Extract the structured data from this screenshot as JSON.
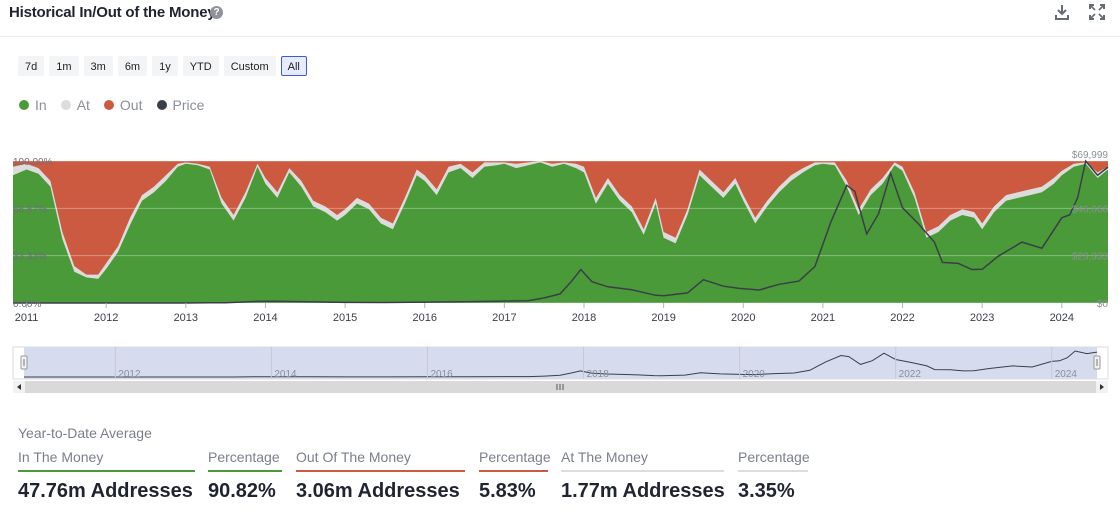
{
  "header": {
    "title": "Historical In/Out of the Money",
    "help_icon": "question-circle-icon",
    "download_icon": "download-icon",
    "fullscreen_icon": "expand-icon"
  },
  "range_buttons": [
    "7d",
    "1m",
    "3m",
    "6m",
    "1y",
    "YTD",
    "Custom",
    "All"
  ],
  "active_range": "All",
  "legend": [
    {
      "label": "In",
      "color": "#4a9a3a"
    },
    {
      "label": "At",
      "color": "#dcdcdc"
    },
    {
      "label": "Out",
      "color": "#cc5a41"
    },
    {
      "label": "Price",
      "color": "#3a3f47"
    }
  ],
  "chart_data": {
    "type": "area",
    "stacked_percent": true,
    "x_range": [
      2010.83,
      2024.58
    ],
    "xticks": [
      "2011",
      "2012",
      "2013",
      "2014",
      "2015",
      "2016",
      "2017",
      "2018",
      "2019",
      "2020",
      "2021",
      "2022",
      "2023",
      "2024"
    ],
    "yticks_left": [
      "0.00%",
      "33.33%",
      "66.67%",
      "100.00%"
    ],
    "yticks_right": [
      "$0",
      "$23,333",
      "$46,666",
      "$69,999"
    ],
    "ylim_percent": [
      0,
      100
    ],
    "ylim_price": [
      0,
      69999
    ],
    "grid": true,
    "series": [
      {
        "name": "In",
        "unit": "percent",
        "x": [
          2010.83,
          2011.0,
          2011.15,
          2011.3,
          2011.45,
          2011.6,
          2011.75,
          2011.9,
          2012.0,
          2012.15,
          2012.3,
          2012.45,
          2012.6,
          2012.75,
          2012.9,
          2013.0,
          2013.15,
          2013.3,
          2013.45,
          2013.6,
          2013.75,
          2013.9,
          2014.0,
          2014.15,
          2014.3,
          2014.45,
          2014.6,
          2014.75,
          2014.9,
          2015.0,
          2015.15,
          2015.3,
          2015.45,
          2015.6,
          2015.75,
          2015.9,
          2016.0,
          2016.15,
          2016.3,
          2016.45,
          2016.6,
          2016.75,
          2016.9,
          2017.0,
          2017.15,
          2017.3,
          2017.45,
          2017.6,
          2017.75,
          2017.9,
          2018.0,
          2018.15,
          2018.3,
          2018.45,
          2018.6,
          2018.75,
          2018.9,
          2019.0,
          2019.15,
          2019.3,
          2019.45,
          2019.6,
          2019.75,
          2019.9,
          2020.0,
          2020.15,
          2020.3,
          2020.45,
          2020.6,
          2020.75,
          2020.9,
          2021.0,
          2021.15,
          2021.3,
          2021.45,
          2021.6,
          2021.75,
          2021.9,
          2022.0,
          2022.15,
          2022.3,
          2022.45,
          2022.6,
          2022.75,
          2022.9,
          2023.0,
          2023.15,
          2023.3,
          2023.45,
          2023.6,
          2023.75,
          2023.9,
          2024.0,
          2024.15,
          2024.3,
          2024.45,
          2024.58
        ],
        "values": [
          90,
          94,
          91,
          82,
          45,
          22,
          18,
          17,
          24,
          36,
          55,
          72,
          78,
          86,
          96,
          98,
          97,
          94,
          70,
          58,
          74,
          96,
          84,
          74,
          92,
          82,
          68,
          64,
          58,
          62,
          70,
          66,
          56,
          52,
          70,
          90,
          86,
          76,
          92,
          95,
          88,
          96,
          97,
          98,
          95,
          97,
          99,
          96,
          98,
          95,
          92,
          70,
          84,
          72,
          64,
          48,
          70,
          46,
          42,
          62,
          90,
          82,
          74,
          84,
          72,
          56,
          68,
          78,
          86,
          92,
          97,
          98,
          97,
          82,
          62,
          76,
          84,
          97,
          93,
          74,
          46,
          50,
          58,
          62,
          60,
          52,
          64,
          72,
          74,
          76,
          78,
          84,
          90,
          96,
          98,
          88,
          94
        ]
      },
      {
        "name": "Out",
        "unit": "percent",
        "x": [
          2010.83,
          2011.0,
          2011.15,
          2011.3,
          2011.45,
          2011.6,
          2011.75,
          2011.9,
          2012.0,
          2012.15,
          2012.3,
          2012.45,
          2012.6,
          2012.75,
          2012.9,
          2013.0,
          2013.15,
          2013.3,
          2013.45,
          2013.6,
          2013.75,
          2013.9,
          2014.0,
          2014.15,
          2014.3,
          2014.45,
          2014.6,
          2014.75,
          2014.9,
          2015.0,
          2015.15,
          2015.3,
          2015.45,
          2015.6,
          2015.75,
          2015.9,
          2016.0,
          2016.15,
          2016.3,
          2016.45,
          2016.6,
          2016.75,
          2016.9,
          2017.0,
          2017.15,
          2017.3,
          2017.45,
          2017.6,
          2017.75,
          2017.9,
          2018.0,
          2018.15,
          2018.3,
          2018.45,
          2018.6,
          2018.75,
          2018.9,
          2019.0,
          2019.15,
          2019.3,
          2019.45,
          2019.6,
          2019.75,
          2019.9,
          2020.0,
          2020.15,
          2020.3,
          2020.45,
          2020.6,
          2020.75,
          2020.9,
          2021.0,
          2021.15,
          2021.3,
          2021.45,
          2021.6,
          2021.75,
          2021.9,
          2022.0,
          2022.15,
          2022.3,
          2022.45,
          2022.6,
          2022.75,
          2022.9,
          2023.0,
          2023.15,
          2023.3,
          2023.45,
          2023.6,
          2023.75,
          2023.9,
          2024.0,
          2024.15,
          2024.3,
          2024.45,
          2024.58
        ],
        "values": [
          4,
          2,
          5,
          14,
          50,
          74,
          80,
          80,
          72,
          60,
          40,
          24,
          18,
          10,
          2,
          1,
          2,
          4,
          26,
          38,
          22,
          2,
          12,
          22,
          5,
          14,
          28,
          32,
          38,
          34,
          26,
          30,
          40,
          44,
          26,
          6,
          10,
          20,
          4,
          2,
          8,
          1,
          1,
          1,
          2,
          1,
          0,
          2,
          1,
          2,
          4,
          26,
          12,
          24,
          32,
          48,
          26,
          50,
          54,
          34,
          6,
          14,
          22,
          12,
          24,
          40,
          28,
          18,
          10,
          5,
          1,
          1,
          1,
          14,
          34,
          20,
          12,
          1,
          4,
          22,
          50,
          46,
          38,
          34,
          36,
          44,
          32,
          24,
          22,
          20,
          18,
          12,
          7,
          2,
          1,
          8,
          4
        ]
      },
      {
        "name": "Price",
        "unit": "USD",
        "x": [
          2010.83,
          2011.0,
          2011.45,
          2011.9,
          2012.5,
          2013.0,
          2013.3,
          2013.5,
          2013.9,
          2014.1,
          2014.5,
          2015.0,
          2015.5,
          2016.0,
          2016.5,
          2017.0,
          2017.3,
          2017.5,
          2017.7,
          2017.85,
          2017.96,
          2018.1,
          2018.3,
          2018.6,
          2018.9,
          2019.0,
          2019.3,
          2019.5,
          2019.75,
          2019.95,
          2020.2,
          2020.45,
          2020.7,
          2020.9,
          2021.0,
          2021.1,
          2021.3,
          2021.4,
          2021.55,
          2021.7,
          2021.85,
          2022.0,
          2022.2,
          2022.4,
          2022.5,
          2022.7,
          2022.87,
          2023.0,
          2023.2,
          2023.5,
          2023.75,
          2024.0,
          2024.1,
          2024.2,
          2024.3,
          2024.45,
          2024.58
        ],
        "values": [
          0.2,
          0.3,
          15,
          3,
          6,
          13,
          90,
          110,
          800,
          900,
          620,
          300,
          250,
          430,
          650,
          960,
          1100,
          2500,
          4500,
          11000,
          16500,
          10500,
          8000,
          6500,
          3800,
          3600,
          5000,
          11500,
          8300,
          7200,
          6400,
          9200,
          10800,
          18000,
          29000,
          40000,
          58000,
          55000,
          34000,
          44000,
          64000,
          47000,
          39000,
          30000,
          20000,
          19500,
          16500,
          16600,
          23000,
          30000,
          27000,
          42000,
          43500,
          52000,
          70000,
          63000,
          67000
        ]
      }
    ]
  },
  "navigator": {
    "labels": [
      "2012",
      "2014",
      "2016",
      "2018",
      "2020",
      "2022",
      "2024"
    ],
    "left_arrow": "chevron-left-icon",
    "right_arrow": "chevron-right-icon",
    "grip": "grip-icon"
  },
  "stats": {
    "title": "Year-to-Date Average",
    "items": [
      {
        "label": "In The Money",
        "value": "47.76m Addresses",
        "color": "#4a9a3a"
      },
      {
        "label": "Percentage",
        "value": "90.82%",
        "color": "#4a9a3a"
      },
      {
        "label": "Out Of The Money",
        "value": "3.06m Addresses",
        "color": "#cc5a41"
      },
      {
        "label": "Percentage",
        "value": "5.83%",
        "color": "#cc5a41"
      },
      {
        "label": "At The Money",
        "value": "1.77m Addresses",
        "color": "#dddddd"
      },
      {
        "label": "Percentage",
        "value": "3.35%",
        "color": "#dddddd"
      }
    ]
  }
}
